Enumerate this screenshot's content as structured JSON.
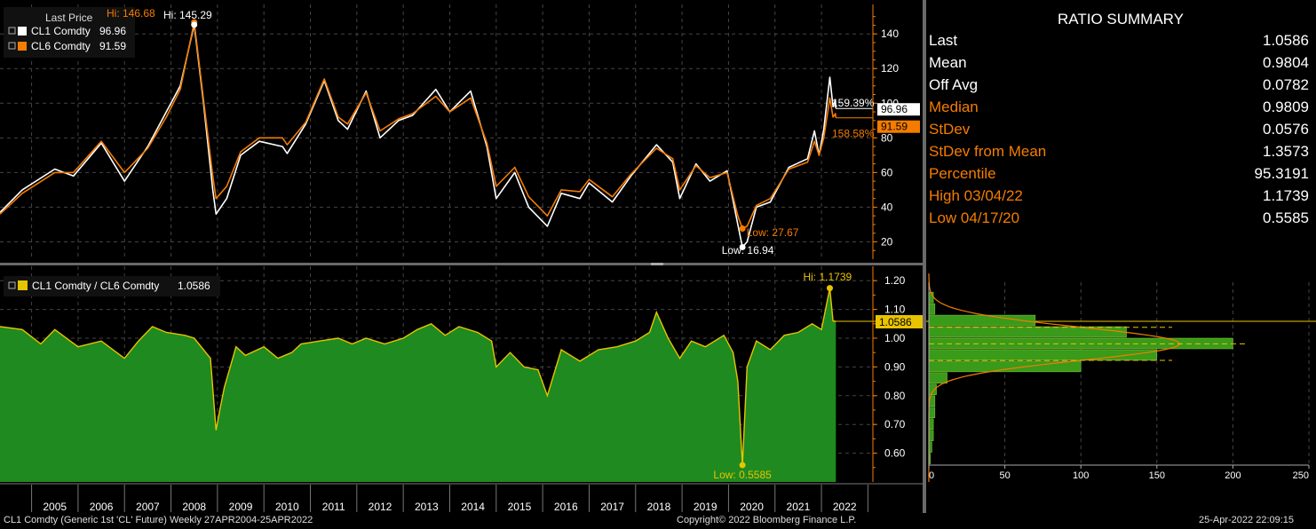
{
  "colors": {
    "cl1": "#ffffff",
    "cl6": "#f57c00",
    "ratio_fill": "#1f8a1f",
    "ratio_line": "#e8c400",
    "axis": "#f57c00",
    "divider": "#6a6a6a",
    "grid": "#444444"
  },
  "summary": {
    "title": "RATIO SUMMARY",
    "rows": [
      {
        "label": "Last",
        "value": "1.0586",
        "label_color": "#ffffff"
      },
      {
        "label": "Mean",
        "value": "0.9804",
        "label_color": "#ffffff"
      },
      {
        "label": "Off Avg",
        "value": "0.0782",
        "label_color": "#ffffff"
      },
      {
        "label": "Median",
        "value": "0.9809",
        "label_color": "#f57c00"
      },
      {
        "label": "StDev",
        "value": "0.0576",
        "label_color": "#f57c00"
      },
      {
        "label": "StDev from Mean",
        "value": "1.3573",
        "label_color": "#f57c00"
      },
      {
        "label": "Percentile",
        "value": "95.3191",
        "label_color": "#f57c00"
      },
      {
        "label": "High 03/04/22",
        "value": "1.1739",
        "label_color": "#f57c00"
      },
      {
        "label": "Low 04/17/20",
        "value": "0.5585",
        "label_color": "#f57c00"
      }
    ]
  },
  "footer": {
    "left": "CL1 Comdty (Generic 1st 'CL' Future)  Weekly 27APR2004-25APR2022",
    "center": "Copyright© 2022 Bloomberg Finance L.P.",
    "right": "25-Apr-2022 22:09:15"
  },
  "chart_data": [
    {
      "type": "line",
      "legend_title": "Last Price",
      "series": [
        {
          "name": "CL1 Comdty",
          "last_label": "96.96",
          "color": "#ffffff",
          "pct_label": "159.39%",
          "points": [
            [
              2004.32,
              37
            ],
            [
              2004.8,
              50
            ],
            [
              2005.5,
              62
            ],
            [
              2005.9,
              58
            ],
            [
              2006.5,
              77
            ],
            [
              2007.0,
              55
            ],
            [
              2007.5,
              75
            ],
            [
              2007.9,
              95
            ],
            [
              2008.2,
              110
            ],
            [
              2008.5,
              145.29
            ],
            [
              2008.7,
              100
            ],
            [
              2008.9,
              50
            ],
            [
              2008.97,
              36
            ],
            [
              2009.2,
              45
            ],
            [
              2009.5,
              70
            ],
            [
              2009.9,
              78
            ],
            [
              2010.4,
              75
            ],
            [
              2010.5,
              71
            ],
            [
              2010.9,
              88
            ],
            [
              2011.3,
              113
            ],
            [
              2011.6,
              90
            ],
            [
              2011.8,
              85
            ],
            [
              2012.2,
              107
            ],
            [
              2012.5,
              80
            ],
            [
              2012.9,
              90
            ],
            [
              2013.2,
              93
            ],
            [
              2013.7,
              108
            ],
            [
              2014.0,
              95
            ],
            [
              2014.45,
              107
            ],
            [
              2014.8,
              75
            ],
            [
              2015.0,
              45
            ],
            [
              2015.4,
              60
            ],
            [
              2015.7,
              40
            ],
            [
              2016.1,
              29
            ],
            [
              2016.4,
              48
            ],
            [
              2016.8,
              45
            ],
            [
              2017.0,
              54
            ],
            [
              2017.5,
              43
            ],
            [
              2017.9,
              58
            ],
            [
              2018.45,
              76
            ],
            [
              2018.8,
              66
            ],
            [
              2018.95,
              45
            ],
            [
              2019.3,
              65
            ],
            [
              2019.6,
              55
            ],
            [
              2019.97,
              61
            ],
            [
              2020.2,
              30
            ],
            [
              2020.3,
              16.94
            ],
            [
              2020.4,
              20
            ],
            [
              2020.6,
              40
            ],
            [
              2020.9,
              43
            ],
            [
              2021.3,
              63
            ],
            [
              2021.7,
              68
            ],
            [
              2021.85,
              84
            ],
            [
              2021.95,
              70
            ],
            [
              2022.05,
              85
            ],
            [
              2022.18,
              115
            ],
            [
              2022.25,
              98
            ],
            [
              2022.3,
              102
            ],
            [
              2022.31,
              96.96
            ]
          ]
        },
        {
          "name": "CL6 Comdty",
          "last_label": "91.59",
          "color": "#f57c00",
          "pct_label": "158.58%",
          "points": [
            [
              2004.32,
              36
            ],
            [
              2004.8,
              48
            ],
            [
              2005.5,
              60
            ],
            [
              2005.9,
              60
            ],
            [
              2006.5,
              78
            ],
            [
              2007.0,
              60
            ],
            [
              2007.5,
              74
            ],
            [
              2007.9,
              92
            ],
            [
              2008.2,
              108
            ],
            [
              2008.5,
              146.68
            ],
            [
              2008.7,
              102
            ],
            [
              2008.9,
              58
            ],
            [
              2008.97,
              45
            ],
            [
              2009.2,
              52
            ],
            [
              2009.5,
              72
            ],
            [
              2009.9,
              80
            ],
            [
              2010.4,
              80
            ],
            [
              2010.5,
              76
            ],
            [
              2010.9,
              89
            ],
            [
              2011.3,
              114
            ],
            [
              2011.6,
              92
            ],
            [
              2011.8,
              88
            ],
            [
              2012.2,
              106
            ],
            [
              2012.5,
              84
            ],
            [
              2012.9,
              91
            ],
            [
              2013.2,
              94
            ],
            [
              2013.7,
              104
            ],
            [
              2014.0,
              95
            ],
            [
              2014.45,
              103
            ],
            [
              2014.8,
              77
            ],
            [
              2015.0,
              52
            ],
            [
              2015.4,
              63
            ],
            [
              2015.7,
              46
            ],
            [
              2016.1,
              35
            ],
            [
              2016.4,
              50
            ],
            [
              2016.8,
              49
            ],
            [
              2017.0,
              56
            ],
            [
              2017.5,
              46
            ],
            [
              2017.9,
              59
            ],
            [
              2018.45,
              74
            ],
            [
              2018.8,
              68
            ],
            [
              2018.95,
              50
            ],
            [
              2019.3,
              64
            ],
            [
              2019.6,
              57
            ],
            [
              2019.97,
              60
            ],
            [
              2020.2,
              35
            ],
            [
              2020.3,
              27.67
            ],
            [
              2020.4,
              29
            ],
            [
              2020.6,
              41
            ],
            [
              2020.9,
              45
            ],
            [
              2021.3,
              62
            ],
            [
              2021.7,
              66
            ],
            [
              2021.85,
              78
            ],
            [
              2021.95,
              70
            ],
            [
              2022.05,
              80
            ],
            [
              2022.18,
              103
            ],
            [
              2022.25,
              92
            ],
            [
              2022.3,
              94
            ],
            [
              2022.31,
              91.59
            ]
          ]
        }
      ],
      "annotations": [
        {
          "text": "Hi: 146.68",
          "x": 2008.5,
          "y": 146.68,
          "series": "CL6 Comdty"
        },
        {
          "text": "Hi: 145.29",
          "x": 2008.5,
          "y": 145.29,
          "series": "CL1 Comdty"
        },
        {
          "text": "Low: 27.67",
          "x": 2020.3,
          "y": 27.67,
          "series": "CL6 Comdty"
        },
        {
          "text": "Low: 16.94",
          "x": 2020.3,
          "y": 16.94,
          "series": "CL1 Comdty"
        }
      ],
      "y_ticks": [
        20,
        40,
        60,
        80,
        100,
        120,
        140
      ],
      "ylim": [
        10,
        157
      ],
      "xlim": [
        2004.32,
        2023.05
      ],
      "grid": true
    },
    {
      "type": "area",
      "series": [
        {
          "name": "CL1 Comdty / CL6 Comdty",
          "last_label": "1.0586",
          "points": [
            [
              2004.32,
              1.04
            ],
            [
              2004.8,
              1.03
            ],
            [
              2005.2,
              0.98
            ],
            [
              2005.5,
              1.03
            ],
            [
              2006.0,
              0.97
            ],
            [
              2006.5,
              0.99
            ],
            [
              2007.0,
              0.93
            ],
            [
              2007.3,
              0.99
            ],
            [
              2007.6,
              1.04
            ],
            [
              2007.9,
              1.02
            ],
            [
              2008.3,
              1.01
            ],
            [
              2008.5,
              1.0
            ],
            [
              2008.85,
              0.93
            ],
            [
              2008.97,
              0.68
            ],
            [
              2009.05,
              0.75
            ],
            [
              2009.15,
              0.83
            ],
            [
              2009.4,
              0.97
            ],
            [
              2009.6,
              0.94
            ],
            [
              2010.0,
              0.97
            ],
            [
              2010.3,
              0.93
            ],
            [
              2010.6,
              0.95
            ],
            [
              2010.8,
              0.98
            ],
            [
              2011.2,
              0.99
            ],
            [
              2011.6,
              1.0
            ],
            [
              2011.9,
              0.98
            ],
            [
              2012.2,
              1.0
            ],
            [
              2012.6,
              0.98
            ],
            [
              2013.0,
              1.0
            ],
            [
              2013.3,
              1.03
            ],
            [
              2013.6,
              1.05
            ],
            [
              2013.9,
              1.01
            ],
            [
              2014.2,
              1.04
            ],
            [
              2014.6,
              1.02
            ],
            [
              2014.9,
              0.99
            ],
            [
              2015.0,
              0.9
            ],
            [
              2015.3,
              0.95
            ],
            [
              2015.6,
              0.9
            ],
            [
              2015.9,
              0.89
            ],
            [
              2016.1,
              0.8
            ],
            [
              2016.4,
              0.96
            ],
            [
              2016.8,
              0.92
            ],
            [
              2017.2,
              0.96
            ],
            [
              2017.6,
              0.97
            ],
            [
              2018.0,
              0.99
            ],
            [
              2018.3,
              1.02
            ],
            [
              2018.45,
              1.09
            ],
            [
              2018.7,
              1.0
            ],
            [
              2018.95,
              0.93
            ],
            [
              2019.2,
              0.99
            ],
            [
              2019.5,
              0.97
            ],
            [
              2019.9,
              1.01
            ],
            [
              2020.1,
              0.95
            ],
            [
              2020.2,
              0.85
            ],
            [
              2020.3,
              0.5585
            ],
            [
              2020.4,
              0.9
            ],
            [
              2020.6,
              0.99
            ],
            [
              2020.9,
              0.96
            ],
            [
              2021.2,
              1.01
            ],
            [
              2021.5,
              1.02
            ],
            [
              2021.8,
              1.05
            ],
            [
              2022.0,
              1.03
            ],
            [
              2022.18,
              1.1739
            ],
            [
              2022.25,
              1.06
            ],
            [
              2022.31,
              1.0586
            ]
          ]
        }
      ],
      "annotations": [
        {
          "text": "Hi: 1.1739",
          "x": 2022.18,
          "y": 1.1739
        },
        {
          "text": "Low: 0.5585",
          "x": 2020.3,
          "y": 0.5585
        }
      ],
      "y_ticks": [
        0.6,
        0.7,
        0.8,
        0.9,
        1.0,
        1.1,
        1.2
      ],
      "ylim": [
        0.5,
        1.25
      ],
      "xlim": [
        2004.32,
        2023.05
      ],
      "x_tick_labels": [
        "2005",
        "2006",
        "2007",
        "2008",
        "2009",
        "2010",
        "2011",
        "2012",
        "2013",
        "2014",
        "2015",
        "2016",
        "2017",
        "2018",
        "2019",
        "2020",
        "2021",
        "2022"
      ]
    },
    {
      "type": "bar",
      "orientation": "horizontal",
      "description": "distribution of ratio values",
      "bins": [
        0.58,
        0.62,
        0.66,
        0.7,
        0.74,
        0.78,
        0.82,
        0.86,
        0.9,
        0.94,
        0.98,
        1.02,
        1.06,
        1.1,
        1.14
      ],
      "counts": [
        1,
        2,
        3,
        3,
        4,
        4,
        5,
        12,
        100,
        150,
        200,
        130,
        70,
        4,
        3
      ],
      "xlim": [
        0,
        250
      ],
      "x_ticks": [
        0,
        50,
        100,
        150,
        200,
        250
      ],
      "normal_fit": {
        "mean": 0.9804,
        "stdev": 0.0576,
        "peak_count": 165
      },
      "mean_line": 0.9804,
      "stdev_lines": [
        0.9228,
        1.038
      ],
      "last_line": 1.0586
    }
  ]
}
